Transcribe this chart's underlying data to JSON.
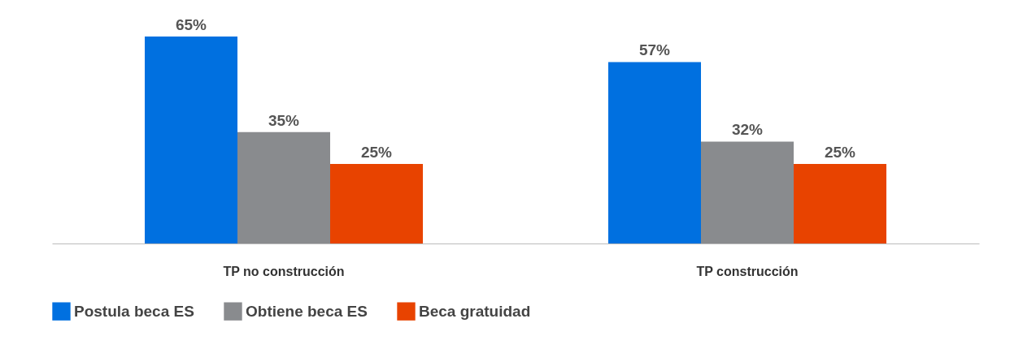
{
  "chart_data": {
    "type": "bar",
    "categories": [
      "TP no construcción",
      "TP construcción"
    ],
    "series": [
      {
        "name": "Postula beca ES",
        "color": "#0070e0",
        "values": [
          65,
          57
        ],
        "value_labels": [
          "65%",
          "57%"
        ]
      },
      {
        "name": "Obtiene beca ES",
        "color": "#898b8e",
        "values": [
          35,
          32
        ],
        "value_labels": [
          "35%",
          "32%"
        ]
      },
      {
        "name": "Beca gratuidad",
        "color": "#e84300",
        "values": [
          25,
          25
        ],
        "value_labels": [
          "25%",
          "25%"
        ]
      }
    ],
    "legend": "bottom",
    "grid": false
  }
}
